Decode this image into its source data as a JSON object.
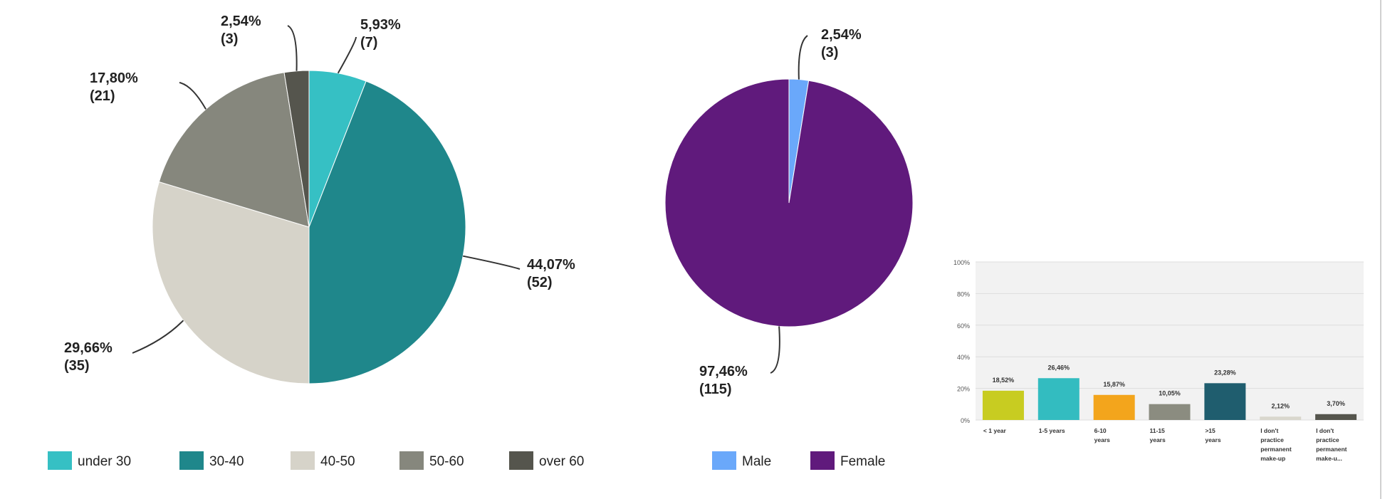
{
  "chart_data": [
    {
      "type": "pie",
      "slices": [
        {
          "name": "under 30",
          "percent": 5.93,
          "count": 7,
          "label_pct": "5,93%",
          "label_count": "(7)",
          "color": "#36c0c4"
        },
        {
          "name": "30-40",
          "percent": 44.07,
          "count": 52,
          "label_pct": "44,07%",
          "label_count": "(52)",
          "color": "#1f878b"
        },
        {
          "name": "40-50",
          "percent": 29.66,
          "count": 35,
          "label_pct": "29,66%",
          "label_count": "(35)",
          "color": "#d6d3c9"
        },
        {
          "name": "50-60",
          "percent": 17.8,
          "count": 21,
          "label_pct": "17,80%",
          "label_count": "(21)",
          "color": "#86877d"
        },
        {
          "name": "over 60",
          "percent": 2.54,
          "count": 3,
          "label_pct": "2,54%",
          "label_count": "(3)",
          "color": "#55554d"
        }
      ],
      "legend": [
        "under 30",
        "30-40",
        "40-50",
        "50-60",
        "over 60"
      ],
      "legend_position": "bottom"
    },
    {
      "type": "pie",
      "slices": [
        {
          "name": "Male",
          "percent": 2.54,
          "count": 3,
          "label_pct": "2,54%",
          "label_count": "(3)",
          "color": "#6aa8fa"
        },
        {
          "name": "Female",
          "percent": 97.46,
          "count": 115,
          "label_pct": "97,46%",
          "label_count": "(115)",
          "color": "#601a7c"
        }
      ],
      "legend": [
        "Male",
        "Female"
      ],
      "legend_position": "bottom"
    },
    {
      "type": "bar",
      "categories": [
        [
          "< 1 year"
        ],
        [
          "1-5 years"
        ],
        [
          "6-10",
          "years"
        ],
        [
          "11-15",
          "years"
        ],
        [
          ">15",
          "years"
        ],
        [
          "I don't",
          "practice",
          "permanent",
          "make-up"
        ],
        [
          "I don't",
          "practice",
          "permanent",
          "make-u..."
        ]
      ],
      "values": [
        18.52,
        26.46,
        15.87,
        10.05,
        23.28,
        2.12,
        3.7
      ],
      "value_labels": [
        "18,52%",
        "26,46%",
        "15,87%",
        "10,05%",
        "23,28%",
        "2,12%",
        "3,70%"
      ],
      "colors": [
        "#c8cc21",
        "#33bcc0",
        "#f3a51c",
        "#8b8c80",
        "#1f5d6e",
        "#d9d7cd",
        "#55554d"
      ],
      "yticks": [
        "0%",
        "20%",
        "40%",
        "60%",
        "80%",
        "100%"
      ],
      "ylim": [
        0,
        100
      ],
      "grid": true
    }
  ]
}
